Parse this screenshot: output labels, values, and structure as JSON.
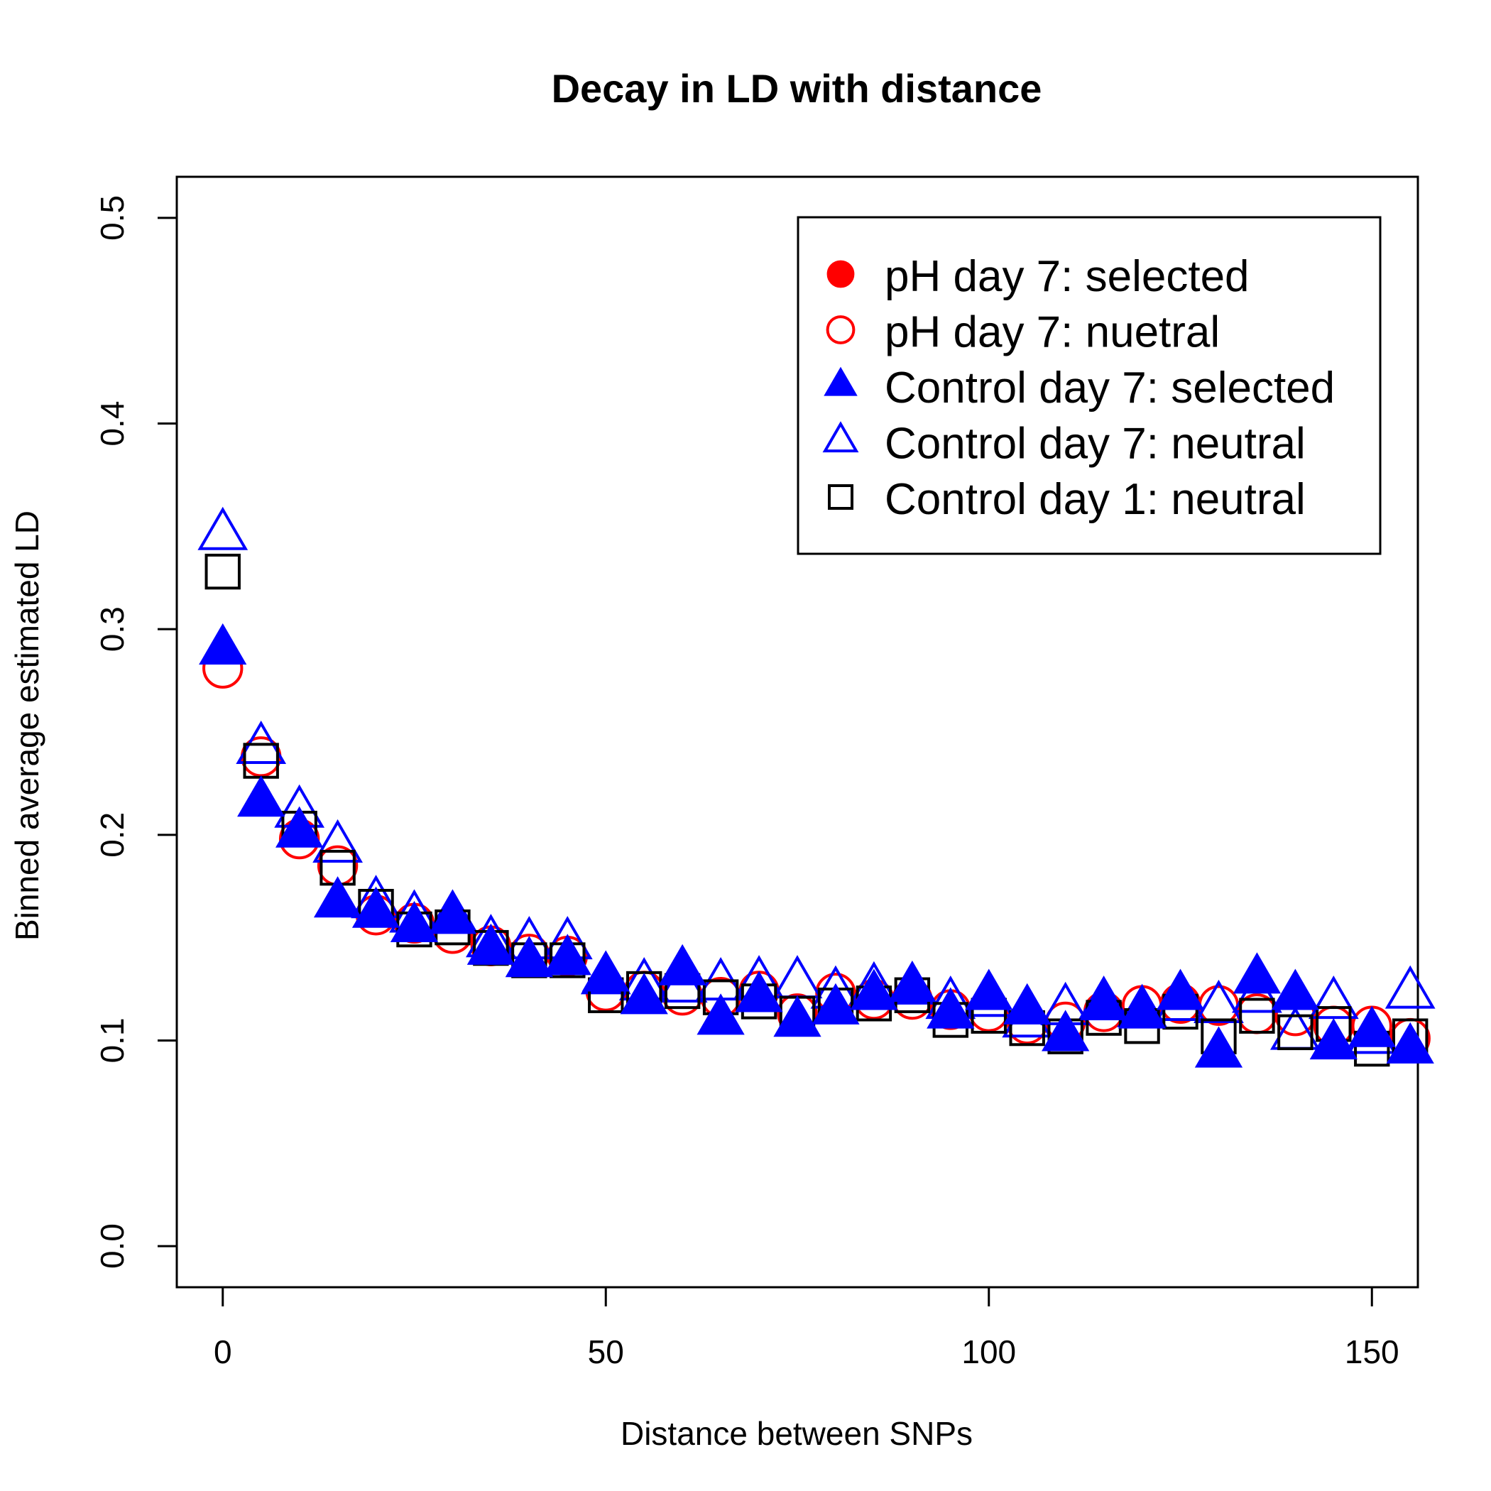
{
  "chart_data": {
    "type": "scatter",
    "title": "Decay in LD with distance",
    "xlabel": "Distance between SNPs",
    "ylabel": "Binned average estimated LD",
    "xlim": [
      -6,
      156
    ],
    "ylim": [
      -0.02,
      0.52
    ],
    "xticks": [
      0,
      50,
      100,
      150
    ],
    "yticks": [
      0.0,
      0.1,
      0.2,
      0.3,
      0.4,
      0.5
    ],
    "ytick_labels": [
      "0.0",
      "0.1",
      "0.2",
      "0.3",
      "0.4",
      "0.5"
    ],
    "grid": false,
    "legend_position": "top-right",
    "x": [
      0,
      5,
      10,
      15,
      20,
      25,
      30,
      35,
      40,
      45,
      50,
      55,
      60,
      65,
      70,
      75,
      80,
      85,
      90,
      95,
      100,
      105,
      110,
      115,
      120,
      125,
      130,
      135,
      140,
      145,
      150,
      155
    ],
    "series": [
      {
        "name": "pH day 7: selected",
        "marker": "filled-circle",
        "color": "#ff0000",
        "values": [
          null,
          null,
          null,
          null,
          null,
          null,
          null,
          null,
          null,
          null,
          null,
          null,
          null,
          null,
          null,
          null,
          null,
          null,
          null,
          null,
          null,
          null,
          null,
          null,
          null,
          null,
          null,
          null,
          null,
          null,
          null,
          null
        ]
      },
      {
        "name": "pH day 7: nuetral",
        "marker": "open-circle",
        "color": "#ff0000",
        "values": [
          0.281,
          0.238,
          0.198,
          0.185,
          0.161,
          0.157,
          0.152,
          0.146,
          0.142,
          0.141,
          0.124,
          0.124,
          0.122,
          0.121,
          0.124,
          0.113,
          0.123,
          0.12,
          0.12,
          0.115,
          0.114,
          0.108,
          0.109,
          0.114,
          0.117,
          0.118,
          0.117,
          0.113,
          0.112,
          0.107,
          0.107,
          0.101
        ]
      },
      {
        "name": "Control day 7: selected",
        "marker": "filled-triangle",
        "color": "#0000ff",
        "values": [
          0.29,
          0.216,
          0.201,
          0.167,
          0.162,
          0.155,
          0.159,
          0.144,
          0.138,
          0.139,
          0.131,
          0.12,
          0.134,
          0.11,
          0.121,
          0.109,
          0.115,
          0.122,
          0.126,
          0.113,
          0.122,
          0.115,
          0.102,
          0.117,
          0.113,
          0.122,
          0.094,
          0.13,
          0.122,
          0.098,
          0.104,
          0.096
        ]
      },
      {
        "name": "Control day 7: neutral",
        "marker": "open-triangle",
        "color": "#0000ff",
        "values": [
          0.346,
          0.242,
          0.211,
          0.194,
          0.167,
          0.16,
          0.16,
          0.148,
          0.147,
          0.147,
          0.13,
          0.127,
          0.126,
          0.127,
          0.128,
          0.128,
          0.123,
          0.125,
          0.125,
          0.118,
          0.119,
          0.109,
          0.115,
          0.118,
          0.114,
          0.117,
          0.116,
          0.121,
          0.103,
          0.118,
          0.101,
          0.123
        ]
      },
      {
        "name": "Control day 1: neutral",
        "marker": "open-square",
        "color": "#000000",
        "values": [
          0.328,
          0.236,
          0.203,
          0.184,
          0.165,
          0.154,
          0.155,
          0.145,
          0.139,
          0.139,
          0.122,
          0.125,
          0.124,
          0.121,
          0.119,
          0.113,
          0.117,
          0.118,
          0.122,
          0.11,
          0.112,
          0.106,
          0.102,
          0.111,
          0.107,
          0.114,
          0.102,
          0.112,
          0.104,
          0.108,
          0.096,
          0.102
        ]
      }
    ]
  }
}
